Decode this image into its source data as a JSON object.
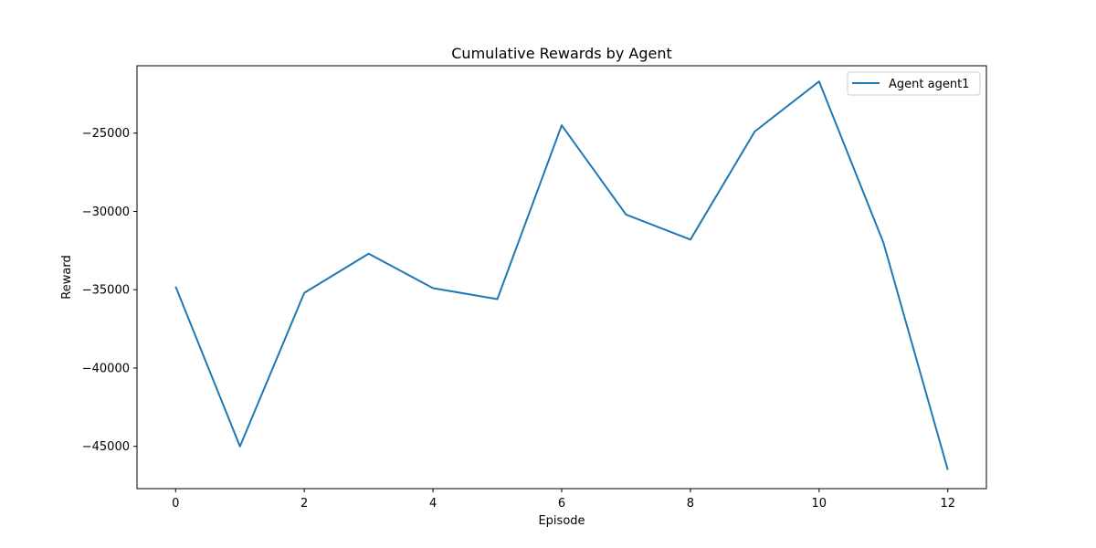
{
  "chart_data": {
    "type": "line",
    "title": "Cumulative Rewards by Agent",
    "xlabel": "Episode",
    "ylabel": "Reward",
    "xlim": [
      -0.6,
      12.6
    ],
    "ylim": [
      -47700,
      -20700
    ],
    "xticks": [
      0,
      2,
      4,
      6,
      8,
      10,
      12
    ],
    "yticks": [
      -45000,
      -40000,
      -35000,
      -30000,
      -25000
    ],
    "ytick_labels": [
      "−45000",
      "−40000",
      "−35000",
      "−30000",
      "−25000"
    ],
    "grid": false,
    "legend_position": "top-right",
    "x": [
      0,
      1,
      2,
      3,
      4,
      5,
      6,
      7,
      8,
      9,
      10,
      11,
      12
    ],
    "series": [
      {
        "name": "Agent agent1",
        "color": "#1f77b4",
        "values": [
          -34800,
          -45000,
          -35200,
          -32700,
          -34900,
          -35600,
          -24500,
          -30200,
          -31800,
          -24900,
          -21700,
          -32000,
          -46500
        ]
      }
    ]
  }
}
